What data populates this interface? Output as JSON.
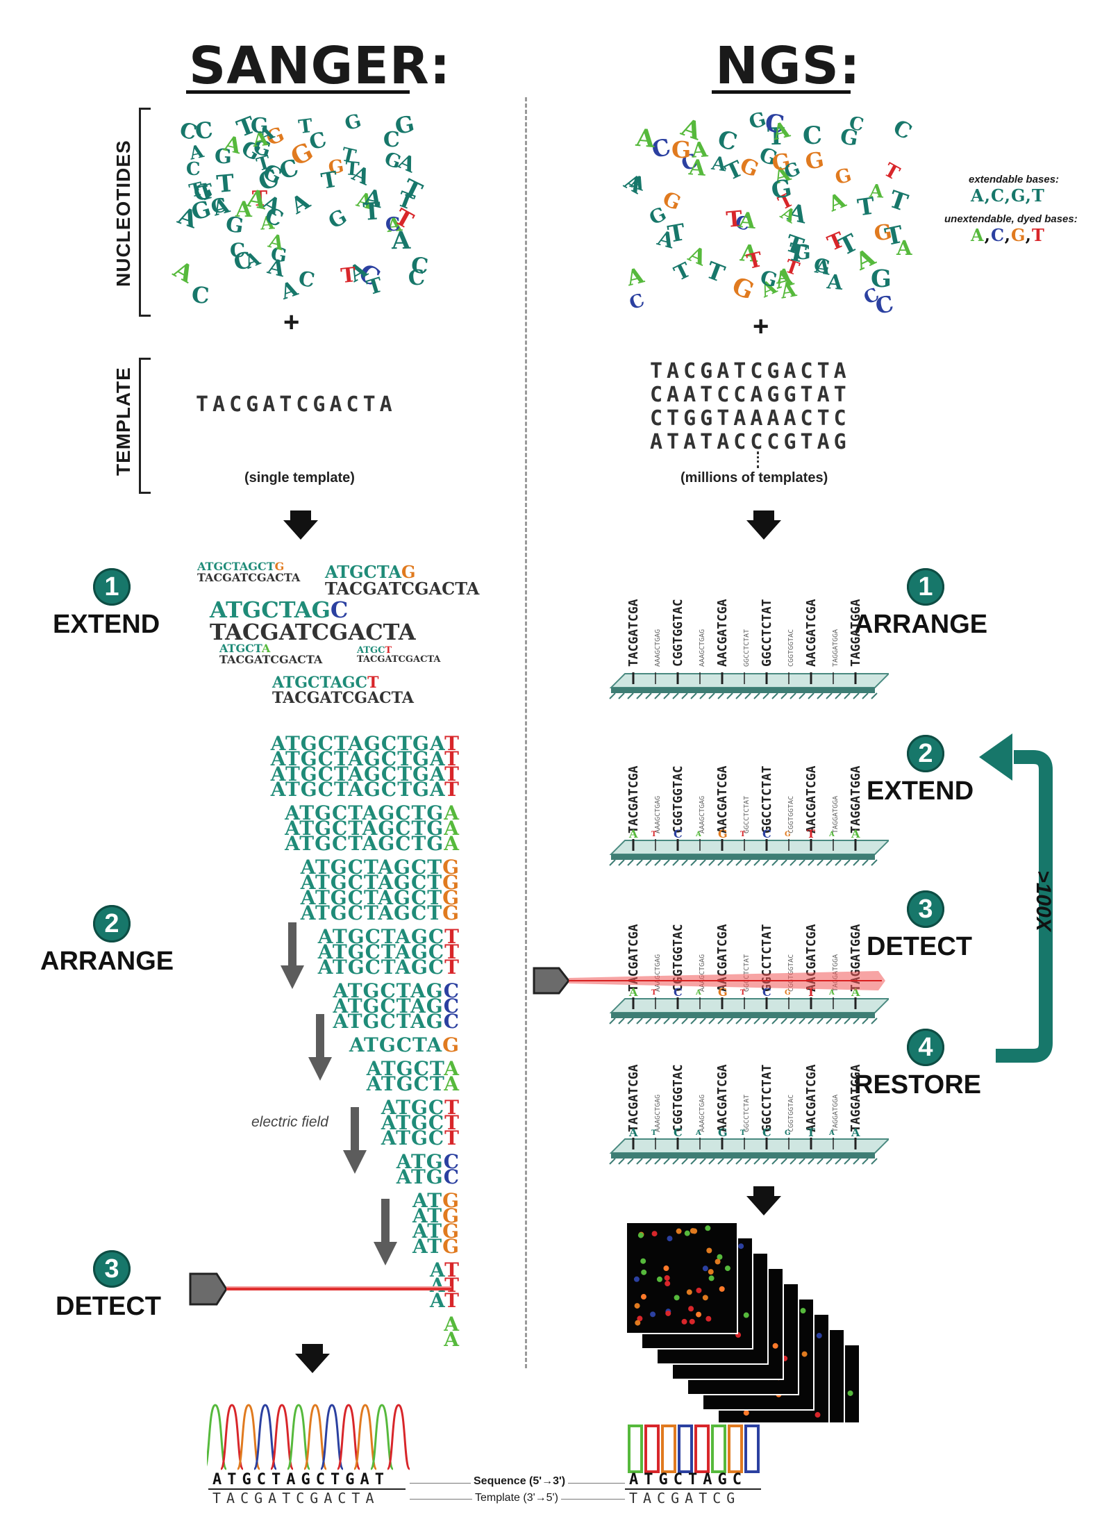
{
  "sanger": {
    "title": "SANGER:",
    "section_labels": {
      "nucleotides": "NUCLEOTIDES",
      "template": "TEMPLATE"
    },
    "plus": "+",
    "template_seq": "TACGATCGACTA",
    "template_caption": "(single template)",
    "steps": [
      {
        "num": "1",
        "label": "EXTEND"
      },
      {
        "num": "2",
        "label": "ARRANGE"
      },
      {
        "num": "3",
        "label": "DETECT"
      }
    ],
    "extend_fragments": [
      {
        "top": "ATGCTAGCTG",
        "bottom": "TACGATCGACTA"
      },
      {
        "top": "ATGCTAG",
        "bottom": "TACGATCGACTA"
      },
      {
        "top": "ATGCTAGC",
        "bottom": "TACGATCGACTA"
      },
      {
        "top": "ATGCTA",
        "bottom": "TACGATCGACTA"
      },
      {
        "top": "ATGCT",
        "bottom": "TACGATCGACTA"
      },
      {
        "top": "ATGCTAGCT",
        "bottom": "TACGATCGACTA"
      }
    ],
    "ladder": [
      {
        "prefix": "ATGCTAGCTGA",
        "end": "T",
        "count": 4
      },
      {
        "prefix": "ATGCTAGCTG",
        "end": "A",
        "count": 3
      },
      {
        "prefix": "ATGCTAGCT",
        "end": "G",
        "count": 4
      },
      {
        "prefix": "ATGCTAGC",
        "end": "T",
        "count": 3
      },
      {
        "prefix": "ATGCTAG",
        "end": "C",
        "count": 3
      },
      {
        "prefix": "ATGCTA",
        "end": "G",
        "count": 1
      },
      {
        "prefix": "ATGCT",
        "end": "A",
        "count": 2
      },
      {
        "prefix": "ATGC",
        "end": "T",
        "count": 3
      },
      {
        "prefix": "ATG",
        "end": "C",
        "count": 2
      },
      {
        "prefix": "AT",
        "end": "G",
        "count": 4
      },
      {
        "prefix": "A",
        "end": "T",
        "count": 3
      },
      {
        "prefix": "",
        "end": "A",
        "count": 2
      }
    ],
    "electric_field": "electric field",
    "result_top": "ATGCTAGCTGAT",
    "result_bottom": "TACGATCGACTA"
  },
  "ngs": {
    "title": "NGS:",
    "plus": "+",
    "templates": [
      "TACGATCGACTA",
      "CAATCCAGGTAT",
      "CTGGTAAAACTC",
      "ATATACCCGTAG"
    ],
    "template_caption": "(millions of templates)",
    "legend": {
      "extendable_label": "extendable bases:",
      "extendable_bases": [
        "A",
        "C",
        "G",
        "T"
      ],
      "unextendable_label": "unextendable, dyed bases:",
      "unextendable_bases": [
        "A",
        "C",
        "G",
        "T"
      ]
    },
    "steps": [
      {
        "num": "1",
        "label": "ARRANGE"
      },
      {
        "num": "2",
        "label": "EXTEND"
      },
      {
        "num": "3",
        "label": "DETECT"
      },
      {
        "num": "4",
        "label": "RESTORE"
      }
    ],
    "cycle_label": ">100X",
    "strands": [
      "TACGATCGA",
      "AAAGCTGAG",
      "CGGTGGTAC",
      "AAAGCTGAG",
      "AACGATCGA",
      "GGCCTCTAT",
      "GGCCTCTAT",
      "CGGTGGTAC",
      "AACGATCGA",
      "TAGGATGGA",
      "TAGGATGGA"
    ],
    "result_top": "ATGCTAGC",
    "result_bottom": "TACGATCG"
  },
  "shared": {
    "sequence_label": "Sequence (5'→3')",
    "template_label": "Template (3'→5')"
  },
  "colors": {
    "A": "#56b93c",
    "C": "#2b40a0",
    "G": "#e07a1f",
    "T": "#d8262a",
    "teal": "#17776a",
    "slide": "#cfe6e1"
  }
}
